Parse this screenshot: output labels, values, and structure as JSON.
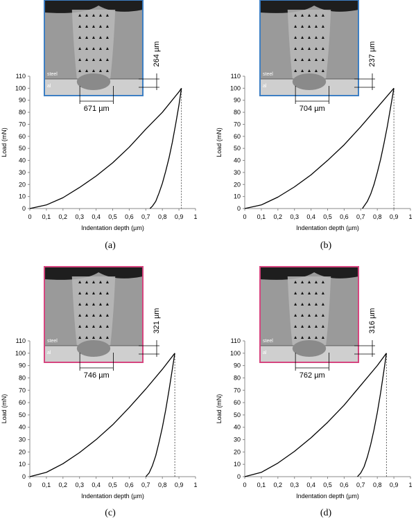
{
  "chart_data": [
    {
      "id": "a",
      "type": "line",
      "caption": "(a)",
      "xlabel": "Indentation depth (µm)",
      "ylabel": "Load (mN)",
      "xlim": [
        0,
        1
      ],
      "ylim": [
        0,
        110
      ],
      "x_ticks": [
        "0",
        "0,1",
        "0,2",
        "0,3",
        "0,4",
        "0,5",
        "0,6",
        "0,7",
        "0,8",
        "0,9",
        "1"
      ],
      "y_ticks": [
        "0",
        "10",
        "20",
        "30",
        "40",
        "50",
        "60",
        "70",
        "80",
        "90",
        "100",
        "110"
      ],
      "grid": false,
      "max_depth": 0.915,
      "max_load": 100,
      "residual_depth": 0.725,
      "series": [
        {
          "x": [
            0,
            0.1,
            0.2,
            0.3,
            0.4,
            0.5,
            0.6,
            0.7,
            0.8,
            0.9,
            0.915
          ],
          "y": [
            0,
            3,
            9,
            17.5,
            27,
            38,
            51,
            66,
            80,
            97,
            100
          ]
        },
        {
          "x": [
            0.915,
            0.9,
            0.88,
            0.86,
            0.84,
            0.82,
            0.8,
            0.78,
            0.76,
            0.74,
            0.725
          ],
          "y": [
            100,
            86,
            70,
            55,
            42,
            31,
            21,
            13,
            6,
            2,
            0
          ]
        }
      ],
      "inset": {
        "border_color": "#3d7fc4",
        "width_label": "671 µm",
        "depth_label": "264 µm",
        "top_layer": "steel",
        "bottom_layer": "al"
      }
    },
    {
      "id": "b",
      "type": "line",
      "caption": "(b)",
      "xlabel": "Indentation depth (µm)",
      "ylabel": "Load (mN)",
      "xlim": [
        0,
        1
      ],
      "ylim": [
        0,
        110
      ],
      "x_ticks": [
        "0",
        "0,1",
        "0,2",
        "0,3",
        "0,4",
        "0,5",
        "0,6",
        "0,7",
        "0,8",
        "0,9",
        "1"
      ],
      "y_ticks": [
        "0",
        "10",
        "20",
        "30",
        "40",
        "50",
        "60",
        "70",
        "80",
        "90",
        "100",
        "110"
      ],
      "grid": false,
      "max_depth": 0.9,
      "max_load": 100,
      "residual_depth": 0.71,
      "series": [
        {
          "x": [
            0,
            0.1,
            0.2,
            0.3,
            0.4,
            0.5,
            0.6,
            0.7,
            0.8,
            0.9
          ],
          "y": [
            0,
            3,
            9.5,
            18,
            28,
            40,
            53,
            68,
            84,
            100
          ]
        },
        {
          "x": [
            0.9,
            0.88,
            0.86,
            0.84,
            0.82,
            0.8,
            0.78,
            0.76,
            0.74,
            0.72,
            0.71
          ],
          "y": [
            100,
            84,
            68,
            54,
            41,
            30,
            20,
            12,
            6,
            2,
            0
          ]
        }
      ],
      "inset": {
        "border_color": "#3d7fc4",
        "width_label": "704 µm",
        "depth_label": "237 µm",
        "top_layer": "steel",
        "bottom_layer": "al"
      }
    },
    {
      "id": "c",
      "type": "line",
      "caption": "(c)",
      "xlabel": "Indentation depth (µm)",
      "ylabel": "Load (mN)",
      "xlim": [
        0,
        1
      ],
      "ylim": [
        0,
        110
      ],
      "x_ticks": [
        "0",
        "0,1",
        "0,2",
        "0,3",
        "0,4",
        "0,5",
        "0,6",
        "0,7",
        "0,8",
        "0,9",
        "1"
      ],
      "y_ticks": [
        "0",
        "10",
        "20",
        "30",
        "40",
        "50",
        "60",
        "70",
        "80",
        "90",
        "100",
        "110"
      ],
      "grid": false,
      "max_depth": 0.875,
      "max_load": 100,
      "residual_depth": 0.7,
      "series": [
        {
          "x": [
            0,
            0.1,
            0.2,
            0.3,
            0.4,
            0.5,
            0.6,
            0.7,
            0.8,
            0.875
          ],
          "y": [
            0,
            3.5,
            10.5,
            19.5,
            30,
            42,
            56,
            71,
            87,
            100
          ]
        },
        {
          "x": [
            0.875,
            0.86,
            0.84,
            0.82,
            0.8,
            0.78,
            0.76,
            0.74,
            0.72,
            0.7
          ],
          "y": [
            100,
            87,
            70,
            54,
            40,
            28,
            17,
            9,
            3,
            0
          ]
        }
      ],
      "inset": {
        "border_color": "#d6457f",
        "width_label": "746 µm",
        "depth_label": "321 µm",
        "top_layer": "steel",
        "bottom_layer": "al"
      }
    },
    {
      "id": "d",
      "type": "line",
      "caption": "(d)",
      "xlabel": "Indentation depth (µm)",
      "ylabel": "Load (mN)",
      "xlim": [
        0,
        1
      ],
      "ylim": [
        0,
        110
      ],
      "x_ticks": [
        "0",
        "0,1",
        "0,2",
        "0,3",
        "0,4",
        "0,5",
        "0,6",
        "0,7",
        "0,8",
        "0,9",
        "1"
      ],
      "y_ticks": [
        "0",
        "10",
        "20",
        "30",
        "40",
        "50",
        "60",
        "70",
        "80",
        "90",
        "100",
        "110"
      ],
      "grid": false,
      "max_depth": 0.855,
      "max_load": 100,
      "residual_depth": 0.68,
      "series": [
        {
          "x": [
            0,
            0.1,
            0.2,
            0.3,
            0.4,
            0.5,
            0.6,
            0.7,
            0.8,
            0.855
          ],
          "y": [
            0,
            3.5,
            11,
            20.5,
            31.5,
            44,
            58,
            74,
            90,
            100
          ]
        },
        {
          "x": [
            0.855,
            0.84,
            0.82,
            0.8,
            0.78,
            0.76,
            0.74,
            0.72,
            0.7,
            0.68
          ],
          "y": [
            100,
            86,
            68,
            52,
            38,
            26,
            16,
            8,
            3,
            0
          ]
        }
      ],
      "inset": {
        "border_color": "#d6457f",
        "width_label": "762 µm",
        "depth_label": "316 µm",
        "top_layer": "steel",
        "bottom_layer": "al"
      }
    }
  ]
}
